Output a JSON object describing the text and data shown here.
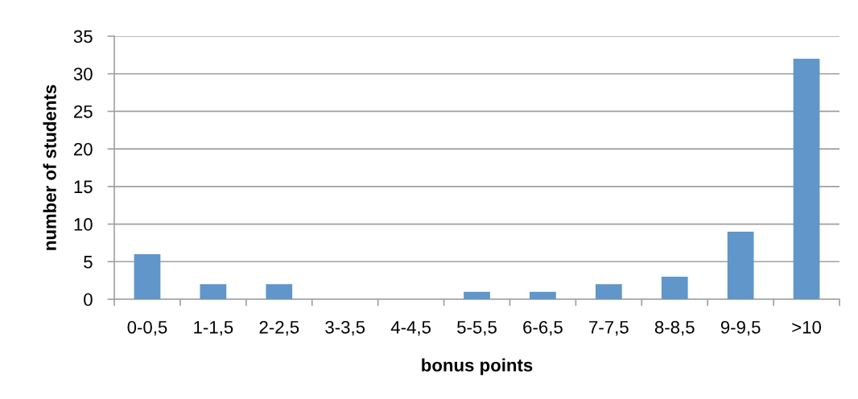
{
  "chart_data": {
    "type": "bar",
    "xlabel": "bonus points",
    "ylabel": "number of students",
    "categories": [
      "0-0,5",
      "1-1,5",
      "2-2,5",
      "3-3,5",
      "4-4,5",
      "5-5,5",
      "6-6,5",
      "7-7,5",
      "8-8,5",
      "9-9,5",
      ">10"
    ],
    "values": [
      6,
      2,
      2,
      0,
      0,
      1,
      1,
      2,
      3,
      9,
      32
    ],
    "color": "#6096c9",
    "ylim": [
      0,
      35
    ],
    "yticks": [
      0,
      5,
      10,
      15,
      20,
      25,
      30,
      35
    ],
    "grid": "y"
  }
}
